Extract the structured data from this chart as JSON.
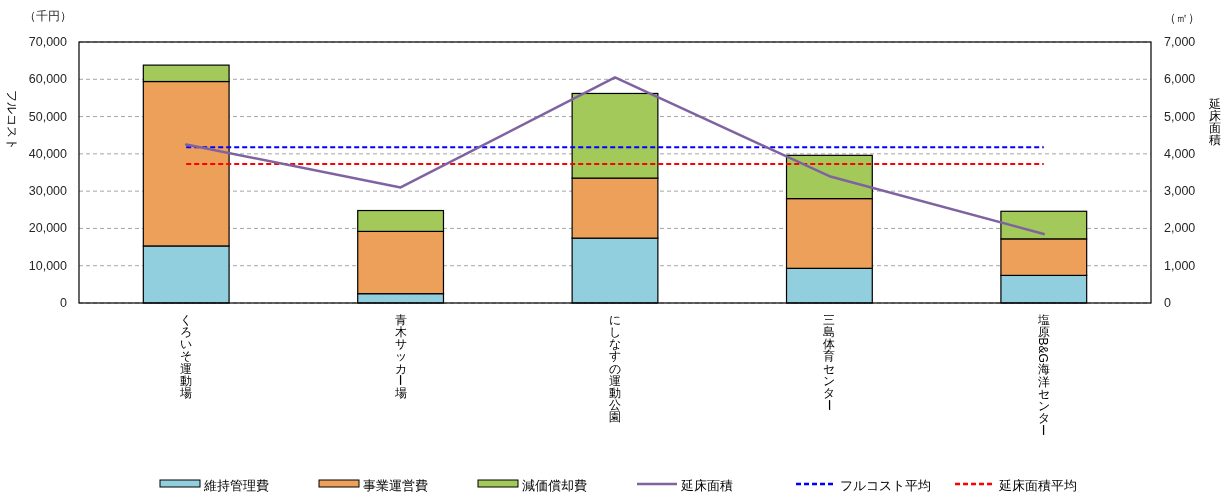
{
  "chart_data": {
    "type": "bar",
    "stacked": true,
    "categories": [
      "くろいそ運動場",
      "青木サッカー場",
      "にしなすの運動公園",
      "三島体育センター",
      "塩原B&G海洋センター"
    ],
    "series": [
      {
        "name": "維持管理費",
        "color": "#92cfde",
        "values": [
          15300,
          2500,
          17400,
          9300,
          7400
        ]
      },
      {
        "name": "事業運営費",
        "color": "#eda05a",
        "values": [
          44100,
          16700,
          16100,
          18700,
          9800
        ]
      },
      {
        "name": "減価償却費",
        "color": "#a2c95a",
        "values": [
          4400,
          5600,
          22700,
          11600,
          7400
        ]
      },
      {
        "name": "延床面積",
        "type": "line",
        "axis": "y2",
        "color": "#7f63a1",
        "values": [
          4250,
          3100,
          6050,
          3400,
          1850
        ]
      }
    ],
    "ylim": [
      0,
      70000
    ],
    "yticks": [
      0,
      {
        "value": 10000,
        "label": "10,000"
      },
      {
        "value": 20000,
        "label": "20,000"
      },
      {
        "value": 30000,
        "label": "30,000"
      },
      {
        "value": 40000,
        "label": "40,000"
      },
      {
        "value": 50000,
        "label": "50,000"
      },
      {
        "value": 60000,
        "label": "60,000"
      },
      {
        "value": 70000,
        "label": "70,000"
      }
    ],
    "y2lim": [
      0,
      7000
    ],
    "y2ticks": [
      0,
      {
        "value": 1000,
        "label": "1,000"
      },
      {
        "value": 2000,
        "label": "2,000"
      },
      {
        "value": 3000,
        "label": "3,000"
      },
      {
        "value": 4000,
        "label": "4,000"
      },
      {
        "value": 5000,
        "label": "5,000"
      },
      {
        "value": 6000,
        "label": "6,000"
      },
      {
        "value": 7000,
        "label": "7,000"
      }
    ],
    "ylabel": "フルコスト",
    "y2label": "延床面積",
    "annotations": [
      "（千円）",
      "（㎡）"
    ],
    "ref_lines": [
      {
        "axis": "y",
        "value": 41800,
        "label": "フルコスト平均",
        "color": "#0000ff",
        "line_style": "dashed"
      },
      {
        "axis": "y2",
        "value": 3730,
        "label": "延床面積平均",
        "color": "#ff0000",
        "line_style": "dashed"
      }
    ],
    "grid": "y",
    "legend": "bottom"
  }
}
